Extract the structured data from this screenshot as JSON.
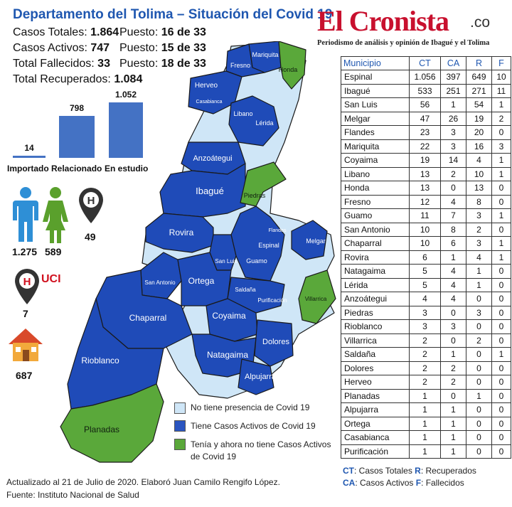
{
  "header": {
    "title": "Departamento del Tolima – Situación del Covid 19",
    "stats": [
      {
        "label": "Casos Totales: ",
        "value": "1.864",
        "rank_label": "Puesto: ",
        "rank": "16 de 33"
      },
      {
        "label": "Casos Activos: ",
        "value": "747",
        "rank_label": "Puesto: ",
        "rank": "15 de 33"
      },
      {
        "label": "Total Fallecidos: ",
        "value": "33",
        "rank_label": "Puesto: ",
        "rank": "18 de 33"
      },
      {
        "label": "Total Recuperados: ",
        "value": "1.084"
      }
    ]
  },
  "logo": {
    "name": "El Cronista",
    "suffix": ".co",
    "tagline": "Periodismo de análisis y opinión de Ibagué y el Tolima"
  },
  "chart_data": {
    "type": "bar",
    "categories": [
      "Importado",
      "Relacionado",
      "En estudio"
    ],
    "values": [
      14,
      798,
      1052
    ],
    "value_labels": [
      "14",
      "798",
      "1.052"
    ],
    "color": "#4472c4"
  },
  "icons": {
    "men": {
      "value": "1.275",
      "icon": "male-person-icon",
      "color": "#2e8fd6"
    },
    "women": {
      "value": "589",
      "icon": "female-person-icon",
      "color": "#5aa02c"
    },
    "hospital": {
      "value": "49",
      "icon": "hospital-pin-icon",
      "color": "#333333"
    },
    "uci": {
      "label": "UCI",
      "value": "7",
      "icon": "hospital-pin-icon",
      "color": "#d0101e"
    },
    "home": {
      "value": "687",
      "icon": "house-icon",
      "color": "#f2a93b"
    }
  },
  "table": {
    "headers": [
      "Municipio",
      "CT",
      "CA",
      "R",
      "F"
    ],
    "rows": [
      [
        "Espinal",
        "1.056",
        "397",
        "649",
        "10"
      ],
      [
        "Ibagué",
        "533",
        "251",
        "271",
        "11"
      ],
      [
        "San Luis",
        "56",
        "1",
        "54",
        "1"
      ],
      [
        "Melgar",
        "47",
        "26",
        "19",
        "2"
      ],
      [
        "Flandes",
        "23",
        "3",
        "20",
        "0"
      ],
      [
        "Mariquita",
        "22",
        "3",
        "16",
        "3"
      ],
      [
        "Coyaima",
        "19",
        "14",
        "4",
        "1"
      ],
      [
        "Libano",
        "13",
        "2",
        "10",
        "1"
      ],
      [
        "Honda",
        "13",
        "0",
        "13",
        "0"
      ],
      [
        "Fresno",
        "12",
        "4",
        "8",
        "0"
      ],
      [
        "Guamo",
        "11",
        "7",
        "3",
        "1"
      ],
      [
        "San Antonio",
        "10",
        "8",
        "2",
        "0"
      ],
      [
        "Chaparral",
        "10",
        "6",
        "3",
        "1"
      ],
      [
        "Rovira",
        "6",
        "1",
        "4",
        "1"
      ],
      [
        "Natagaima",
        "5",
        "4",
        "1",
        "0"
      ],
      [
        "Lérida",
        "5",
        "4",
        "1",
        "0"
      ],
      [
        "Anzoátegui",
        "4",
        "4",
        "0",
        "0"
      ],
      [
        "Piedras",
        "3",
        "0",
        "3",
        "0"
      ],
      [
        "Rioblanco",
        "3",
        "3",
        "0",
        "0"
      ],
      [
        "Villarrica",
        "2",
        "0",
        "2",
        "0"
      ],
      [
        "Saldaña",
        "2",
        "1",
        "0",
        "1"
      ],
      [
        "Dolores",
        "2",
        "2",
        "0",
        "0"
      ],
      [
        "Herveo",
        "2",
        "2",
        "0",
        "0"
      ],
      [
        "Planadas",
        "1",
        "0",
        "1",
        "0"
      ],
      [
        "Alpujarra",
        "1",
        "1",
        "0",
        "0"
      ],
      [
        "Ortega",
        "1",
        "1",
        "0",
        "0"
      ],
      [
        "Casabianca",
        "1",
        "1",
        "0",
        "0"
      ],
      [
        "Purificación",
        "1",
        "1",
        "0",
        "0"
      ]
    ]
  },
  "abbreviations": [
    {
      "abbr": "CT",
      "text": ": Casos Totales "
    },
    {
      "abbr": "R",
      "text": ": Recuperados"
    },
    {
      "abbr": "CA",
      "text": ": Casos Activos "
    },
    {
      "abbr": "F",
      "text": ": Fallecidos"
    }
  ],
  "legend": [
    {
      "color": "#cfe6f7",
      "text": "No tiene presencia de Covid 19"
    },
    {
      "color": "#2a55c0",
      "text": "Tiene Casos Activos de Covid 19"
    },
    {
      "color": "#5aa83a",
      "text": "Tenía y ahora no tiene Casos Activos de Covid 19"
    }
  ],
  "map": {
    "colors": {
      "none": "#cfe6f7",
      "active": "#1f4bb8",
      "recovered": "#5aa83a",
      "border": "#1a1a1a"
    },
    "labels": [
      "Mariquita",
      "Honda",
      "Fresno",
      "Herveo",
      "Casabianca",
      "Libano",
      "Lérida",
      "Anzoátegui",
      "Ibagué",
      "Piedras",
      "Rovira",
      "Flandes",
      "Espinal",
      "Melgar",
      "San Luis",
      "Guamo",
      "San Antonio",
      "Ortega",
      "Saldaña",
      "Purificación",
      "Chaparral",
      "Coyaima",
      "Villarrica",
      "Natagaima",
      "Dolores",
      "Rioblanco",
      "Alpujarra",
      "Planadas"
    ]
  },
  "footer": {
    "updated": "Actualizado al 21 de Julio de 2020. Elaboró Juan Camilo Rengifo López.",
    "source": "Fuente: Instituto Nacional de Salud"
  }
}
